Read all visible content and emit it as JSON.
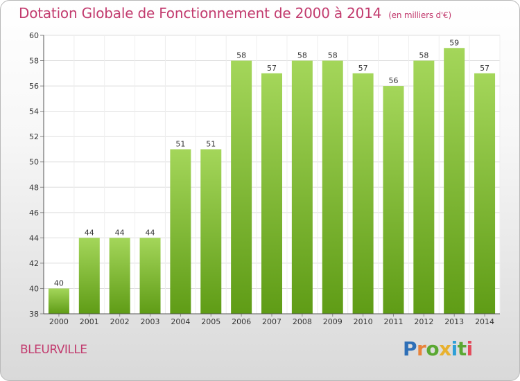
{
  "title": "Dotation Globale de Fonctionnement de 2000 à 2014",
  "subtitle": "(en milliers d'€)",
  "place": "BLEURVILLE",
  "logo": {
    "text": "Proxiti",
    "letters": [
      {
        "ch": "P",
        "color": "#2e6fb7"
      },
      {
        "ch": "r",
        "color": "#e8833a"
      },
      {
        "ch": "o",
        "color": "#5aa832"
      },
      {
        "ch": "x",
        "color": "#e8b12e"
      },
      {
        "ch": "i",
        "color": "#2e9fd6"
      },
      {
        "ch": "t",
        "color": "#5aa832"
      },
      {
        "ch": "i",
        "color": "#e34b5b"
      }
    ]
  },
  "colors": {
    "bar_top": "#a4d65a",
    "bar_bottom": "#5f9c16",
    "title": "#c23b6e"
  },
  "chart_data": {
    "type": "bar",
    "categories": [
      "2000",
      "2001",
      "2002",
      "2003",
      "2004",
      "2005",
      "2006",
      "2007",
      "2008",
      "2009",
      "2010",
      "2011",
      "2012",
      "2013",
      "2014"
    ],
    "values": [
      40,
      44,
      44,
      44,
      51,
      51,
      58,
      57,
      58,
      58,
      57,
      56,
      58,
      59,
      57
    ],
    "ylim": [
      38,
      60
    ],
    "yticks": [
      38,
      40,
      42,
      44,
      46,
      48,
      50,
      52,
      54,
      56,
      58,
      60
    ],
    "grid": true
  }
}
